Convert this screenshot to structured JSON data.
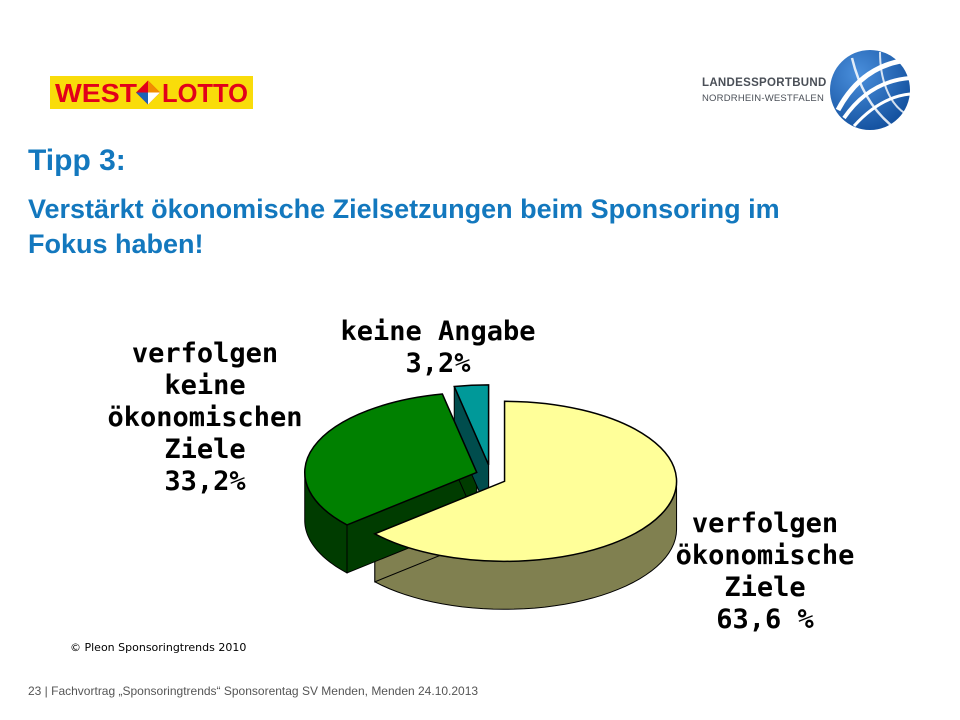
{
  "logos": {
    "westlotto": {
      "part1": "WEST",
      "part2": "LOTTO",
      "colors": {
        "bg": "#f9dc0a",
        "text": "#e2001a"
      }
    },
    "landessportbund": {
      "line1": "LANDESSPORTBUND",
      "line2": "NORDRHEIN-WESTFALEN",
      "globe_color": "#1d63b5"
    }
  },
  "title": {
    "line1": "Tipp 3:",
    "line2": "Verstärkt ökonomische Zielsetzungen beim Sponsoring im Fokus haben!",
    "color": "#1378be"
  },
  "chart_data": {
    "type": "pie",
    "style": "3d-exploded",
    "slices": [
      {
        "label": "verfolgen ökonomische Ziele",
        "value": 63.6,
        "value_text": "63,6 %",
        "color": "#ffff99",
        "side_color": "#808050"
      },
      {
        "label": "verfolgen keine ökonomischen Ziele",
        "value": 33.2,
        "value_text": "33,2%",
        "color": "#008000",
        "side_color": "#003c00"
      },
      {
        "label": "keine Angabe",
        "value": 3.2,
        "value_text": "3,2%",
        "color": "#009999",
        "side_color": "#004d4d"
      }
    ],
    "labels": {
      "main": [
        "verfolgen",
        "ökonomische",
        "Ziele",
        "63,6 %"
      ],
      "keine_ziele": [
        "verfolgen",
        "keine",
        "ökonomischen",
        "Ziele",
        "33,2%"
      ],
      "keine_angabe": [
        "keine Angabe",
        "3,2%"
      ]
    }
  },
  "source": "© Pleon Sponsoringtrends 2010",
  "footer": "23 | Fachvortrag „Sponsoringtrends“ Sponsorentag SV Menden, Menden 24.10.2013"
}
